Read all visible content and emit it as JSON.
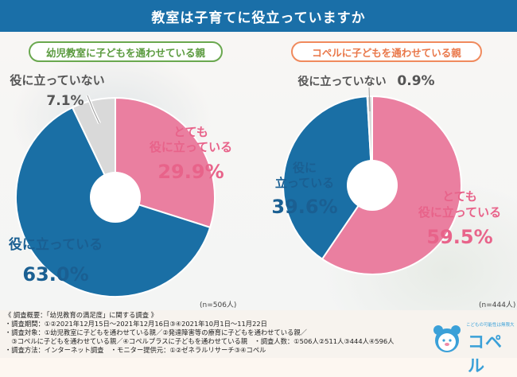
{
  "header": {
    "title": "教室は子育てに役立っていますか"
  },
  "chart_data": [
    {
      "type": "pie",
      "title": "幼児教室に子どもを通わせている親",
      "note": "(n=506人)",
      "slices": [
        {
          "name": "とても役に立っている",
          "value": 29.9,
          "label_line1": "とても",
          "label_line2": "役に立っている",
          "pct": "29.9%",
          "color": "#ea7fa0"
        },
        {
          "name": "役に立っている",
          "value": 63.0,
          "label_line1": "役に立っている",
          "pct": "63.0%",
          "color": "#1a6fa5"
        },
        {
          "name": "役に立っていない",
          "value": 7.1,
          "label_line1": "役に立っていない",
          "pct": "7.1%",
          "color": "#d9d9d9"
        }
      ]
    },
    {
      "type": "pie",
      "title": "コペルに子どもを通わせている親",
      "note": "(n=444人)",
      "slices": [
        {
          "name": "とても役に立っている",
          "value": 59.5,
          "label_line1": "とても",
          "label_line2": "役に立っている",
          "pct": "59.5%",
          "color": "#ea7fa0"
        },
        {
          "name": "役に立っている",
          "value": 39.6,
          "label_line1": "役に",
          "label_line2": "立っている",
          "pct": "39.6%",
          "color": "#1a6fa5"
        },
        {
          "name": "役に立っていない",
          "value": 0.9,
          "label_line1": "役に立っていない",
          "pct": "0.9%",
          "color": "#d9d9d9"
        }
      ]
    }
  ],
  "footer": {
    "lines": [
      "《 調査概要：「幼児教育の満足度」に関する調査 》",
      "・調査期間：①②2021年12月15日～2021年12月16日③④2021年10月1日～11月22日",
      "・調査対象：①幼児教室に子どもを通わせている親／②発達障害等の療育に子どもを通わせている親／",
      "　③コペルに子どもを通わせている親／④コペルプラスに子どもを通わせている親　・調査人数：①506人②511人③444人④596人",
      "・調査方法：インターネット調査　・モニター提供元：①②ゼネラルリサーチ③④コペル"
    ]
  },
  "logo": {
    "tagline": "こどもの可能性は無限大",
    "word": "コペル"
  }
}
